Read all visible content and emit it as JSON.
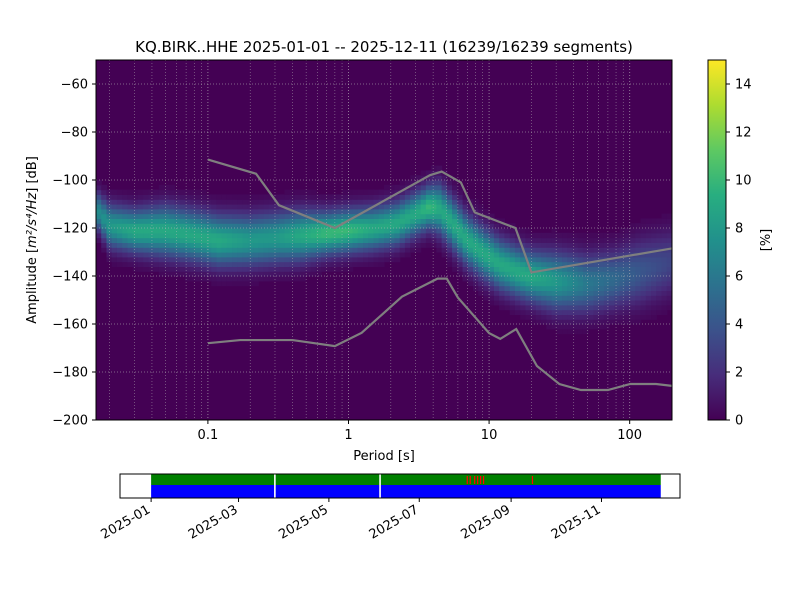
{
  "chart_data": [
    {
      "type": "heatmap",
      "title": "KQ.BIRK..HHE   2025-01-01 -- 2025-12-11  (16239/16239 segments)",
      "xlabel": "Period [s]",
      "ylabel_prefix": "Amplitude [",
      "ylabel_math": "m²/s⁴/Hz",
      "ylabel_suffix": "] [dB]",
      "xscale": "log",
      "xlim": [
        0.016,
        200
      ],
      "ylim": [
        -200,
        -50
      ],
      "xticks": [
        0.1,
        1,
        10,
        100
      ],
      "xtick_labels": [
        "0.1",
        "1",
        "10",
        "100"
      ],
      "yticks": [
        -200,
        -180,
        -160,
        -140,
        -120,
        -100,
        -80,
        -60
      ],
      "ytick_labels": [
        "−200",
        "−180",
        "−160",
        "−140",
        "−120",
        "−100",
        "−80",
        "−60"
      ],
      "grid": true,
      "colormap": "viridis",
      "colorbar": {
        "label": "[%]",
        "range": [
          0,
          15
        ],
        "ticks": [
          0,
          2,
          4,
          6,
          8,
          10,
          12,
          14
        ],
        "tick_labels": [
          "0",
          "2",
          "4",
          "6",
          "8",
          "10",
          "12",
          "14"
        ]
      },
      "psd_ridge": {
        "description_points": "mode of the probability distribution (period s, dB)",
        "x": [
          0.016,
          0.02,
          0.03,
          0.05,
          0.08,
          0.12,
          0.2,
          0.3,
          0.45,
          0.7,
          1.0,
          1.5,
          2.2,
          3.0,
          3.8,
          4.5,
          5.5,
          7.0,
          9.0,
          12,
          16,
          20,
          30,
          50,
          80,
          120,
          200
        ],
        "y": [
          -112,
          -119,
          -121,
          -121,
          -123,
          -125,
          -125,
          -124,
          -123,
          -122,
          -121,
          -120,
          -118,
          -114,
          -111,
          -112,
          -118,
          -125,
          -130,
          -135,
          -138,
          -140,
          -142,
          -143,
          -141,
          -138,
          -134
        ],
        "spread_db": [
          5,
          6,
          6,
          7,
          7,
          7,
          7,
          7,
          7,
          6,
          6,
          6,
          6,
          6,
          6,
          7,
          7,
          7,
          7,
          7,
          7,
          7,
          8,
          8,
          8,
          9,
          9
        ],
        "peak_percent": [
          7,
          8,
          9,
          9,
          9,
          9,
          8,
          8,
          9,
          10,
          10,
          9,
          9,
          9,
          10,
          9,
          9,
          9,
          9,
          9,
          9,
          9,
          8,
          6,
          5,
          4,
          3
        ]
      },
      "noise_models": [
        {
          "x": [
            0.1,
            0.17,
            0.4,
            0.8,
            1.24,
            2.4,
            4.3,
            5.0,
            6.0,
            10,
            12,
            15.6,
            21.9,
            31.6,
            45,
            70,
            101,
            154,
            200
          ],
          "y": [
            -168,
            -166.7,
            -166.7,
            -169.2,
            -163.7,
            -148.6,
            -141.1,
            -141.1,
            -149,
            -163.8,
            -166.2,
            -162.1,
            -177.5,
            -185,
            -187.5,
            -187.5,
            -185,
            -185,
            -185.8
          ]
        },
        {
          "x": [
            0.1,
            0.22,
            0.32,
            0.8,
            3.8,
            4.6,
            6.3,
            7.9,
            15.4,
            20,
            200
          ],
          "y": [
            -91.5,
            -97.4,
            -110.5,
            -120,
            -98,
            -96.5,
            -101,
            -113.5,
            -120,
            -138.5,
            -128.5
          ]
        }
      ],
      "noise_model_color": "#7f7f7f"
    },
    {
      "type": "timeline",
      "xlim": [
        "2024-12-11",
        "2025-12-24"
      ],
      "data_span": [
        "2025-01-01",
        "2025-12-11"
      ],
      "tick_dates": [
        "2025-01-01",
        "2025-03-01",
        "2025-05-01",
        "2025-07-01",
        "2025-09-01",
        "2025-11-01"
      ],
      "tick_labels": [
        "2025-01",
        "2025-03",
        "2025-05",
        "2025-07",
        "2025-09",
        "2025-11"
      ],
      "gaps": [
        "2025-03-25",
        "2025-06-04"
      ],
      "flagged_dates": [
        "2025-08-02",
        "2025-08-04",
        "2025-08-07",
        "2025-08-09",
        "2025-08-11",
        "2025-08-13",
        "2025-09-15"
      ],
      "colors": {
        "coverage": "#0000ff",
        "used": "#008000",
        "flagged": "#ff0000",
        "gap": "#ffffff"
      }
    }
  ]
}
